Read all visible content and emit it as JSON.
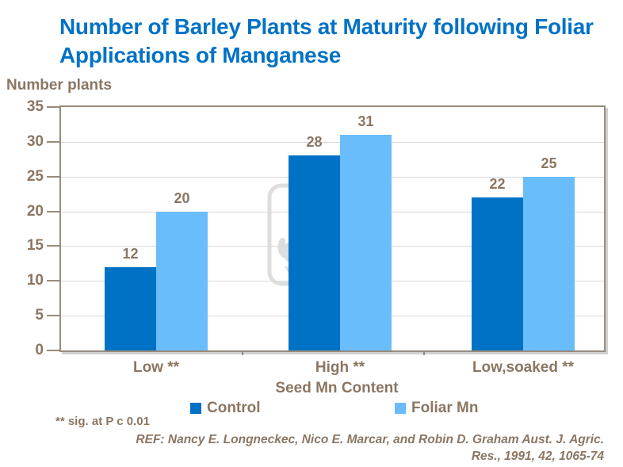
{
  "slide": {
    "title_lines": {
      "line1": "Number of Barley Plants at Maturity following Foliar",
      "line2": "Applications of Manganese"
    },
    "footnote": "** sig. at P c 0.01",
    "reference": {
      "line1": "REF: Nancy E. Longneckec, Nico E. Marcar, and Robin D. Graham Aust. J. Agric.",
      "line2": "Res., 1991, 42, 1065-74"
    },
    "watermark_text": "YARA"
  },
  "colors": {
    "title_blue": "#0072C6",
    "text_brown": "#8B7662",
    "plot_border_brown": "#9A8B7B",
    "gridline_gray": "#D9D9D9",
    "control_bar": "#0072C6",
    "foliar_bar": "#6ABDFB"
  },
  "chart_data": {
    "type": "bar",
    "title": "Number of Barley Plants at Maturity following Foliar Applications of Manganese",
    "categories": [
      "Low **",
      "High **",
      "Low,soaked **"
    ],
    "series": [
      {
        "name": "Control",
        "values": [
          12,
          28,
          22
        ],
        "color": "#0072C6"
      },
      {
        "name": "Foliar Mn",
        "values": [
          20,
          31,
          25
        ],
        "color": "#6ABDFB"
      }
    ],
    "xlabel": "Seed Mn Content",
    "ylabel": "Number plants",
    "ylim": [
      0,
      35
    ],
    "ytick_step": 5,
    "grid": true,
    "data_labels": true,
    "legend_position": "bottom"
  }
}
